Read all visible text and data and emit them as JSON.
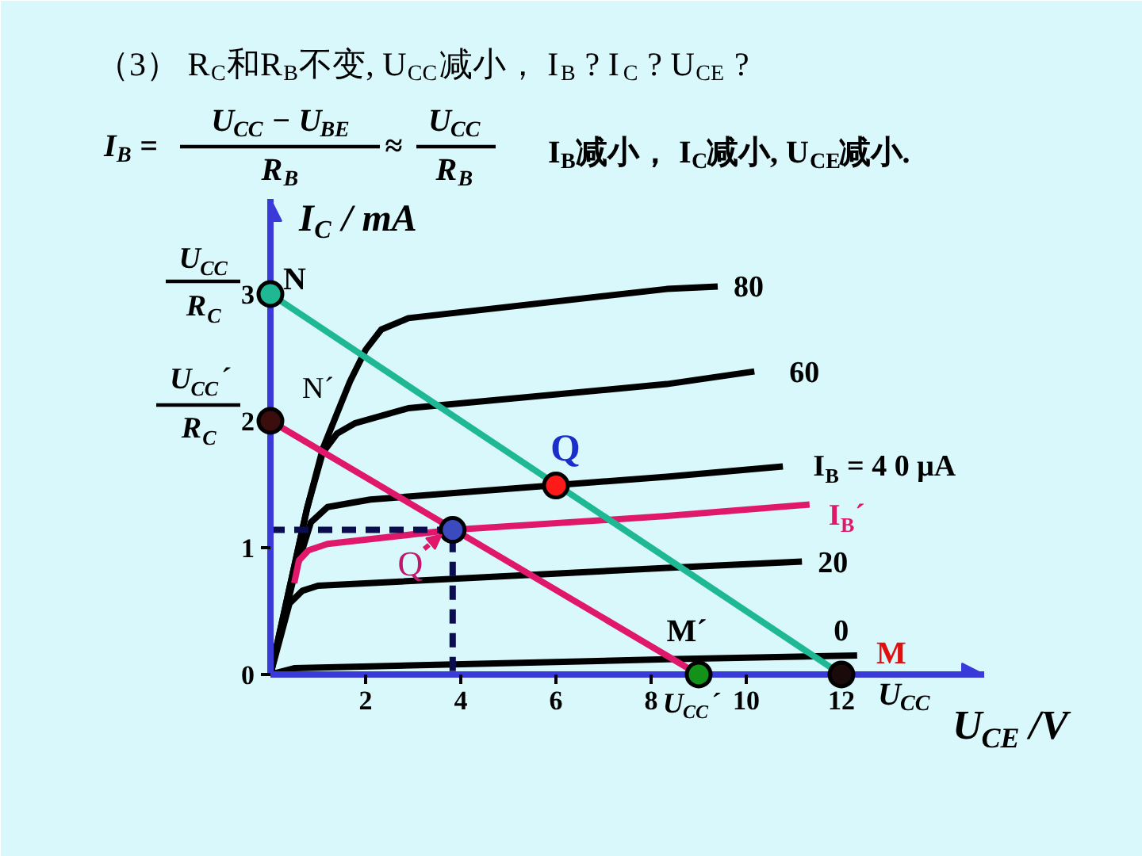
{
  "chart_data": {
    "type": "line",
    "title": "（3） R$_{C}$和R$_{B}$不变, U$_{CC}$减小， I$_{B}$ ? I$_{C}$ ? U$_{CE}$ ?",
    "xlabel": "U$_{CE}$ /V",
    "ylabel": "I$_{C}$ / mA",
    "xlim": [
      0,
      15
    ],
    "ylim": [
      0,
      3.75
    ],
    "xticks": [
      2,
      4,
      6,
      8,
      10,
      12
    ],
    "yticks": [
      0,
      1,
      2,
      3
    ],
    "series": [
      {
        "name": "80",
        "color": "#000000",
        "x": [
          0,
          0.77,
          1.1,
          1.67,
          2.0,
          2.33,
          2.9,
          8.33,
          9.4
        ],
        "values": [
          0,
          1.31,
          1.78,
          2.31,
          2.56,
          2.72,
          2.81,
          3.04,
          3.06
        ]
      },
      {
        "name": "60",
        "color": "#000000",
        "x": [
          0,
          0.77,
          1.1,
          1.4,
          1.77,
          2.9,
          8.33,
          10.17
        ],
        "values": [
          0,
          1.31,
          1.75,
          1.9,
          1.98,
          2.1,
          2.29,
          2.39
        ]
      },
      {
        "name": "I$_{B}$ = 4 0 μA",
        "color": "#000000",
        "x": [
          0,
          0.5,
          0.85,
          1.2,
          2.1,
          8.33,
          10.77
        ],
        "values": [
          0,
          0.78,
          1.2,
          1.32,
          1.38,
          1.56,
          1.64
        ]
      },
      {
        "name": "I$_{B}$´",
        "color": "#e0186c",
        "x": [
          0.5,
          0.6,
          0.8,
          1.2,
          3.83,
          8.33,
          11.33
        ],
        "values": [
          0.72,
          0.9,
          0.98,
          1.03,
          1.14,
          1.25,
          1.34
        ]
      },
      {
        "name": "20",
        "color": "#000000",
        "x": [
          0,
          0.4,
          0.67,
          1.0,
          8.33,
          11.17
        ],
        "values": [
          0,
          0.56,
          0.66,
          0.7,
          0.84,
          0.89
        ]
      },
      {
        "name": "0",
        "color": "#000000",
        "x": [
          0,
          0.5,
          8.33,
          12.33
        ],
        "values": [
          0,
          0.05,
          0.12,
          0.15
        ]
      },
      {
        "color": "#1fb894",
        "x": [
          0,
          12
        ],
        "values": [
          3,
          0
        ]
      },
      {
        "color": "#e0186c",
        "x": [
          0,
          9
        ],
        "values": [
          2,
          0
        ]
      },
      {
        "color": "#0c0c50",
        "line_style": "dashed",
        "x": [
          0,
          3.83,
          3.83
        ],
        "values": [
          1.14,
          1.14,
          0
        ]
      },
      {
        "type": "scatter",
        "marker": "circle",
        "x": [
          0,
          0,
          6,
          3.83,
          9,
          12
        ],
        "values": [
          3,
          2,
          1.49,
          1.14,
          0,
          0
        ],
        "colors": [
          "#1fb894",
          "#3b0d0d",
          "#ff1a1a",
          "#3b4bbf",
          "#13921a",
          "#1a0a0a"
        ]
      }
    ],
    "annotations": [
      "I$_{B}$ =",
      "U$_{CC}$ − U$_{BE}$",
      "R$_{B}$",
      "≈",
      "U$_{CC}$",
      "R$_{B}$",
      "I$_{B}$减小， I$_{C}$减小, U$_{CE}$减小.",
      {
        "text": "U$_{CC}$",
        "x": 0,
        "y": 3
      },
      {
        "text": "R$_{C}$",
        "x": 0,
        "y": 3
      },
      {
        "text": "N",
        "x": 0,
        "y": 3
      },
      {
        "text": "U$_{CC}$´",
        "x": 0,
        "y": 2
      },
      {
        "text": "R$_{C}$",
        "x": 0,
        "y": 2
      },
      {
        "text": "N´",
        "x": 0,
        "y": 2
      },
      {
        "text": "Q",
        "x": 6,
        "y": 1.49
      },
      {
        "text": "Q",
        "x": 3.83,
        "y": 1.14
      },
      {
        "text": "M´",
        "x": 9,
        "y": 0
      },
      {
        "text": "M",
        "x": 12,
        "y": 0
      },
      {
        "text": "U$_{CC}$´",
        "x": 9,
        "y": 0
      },
      {
        "text": "U$_{CC}$",
        "x": 12,
        "y": 0
      }
    ]
  }
}
